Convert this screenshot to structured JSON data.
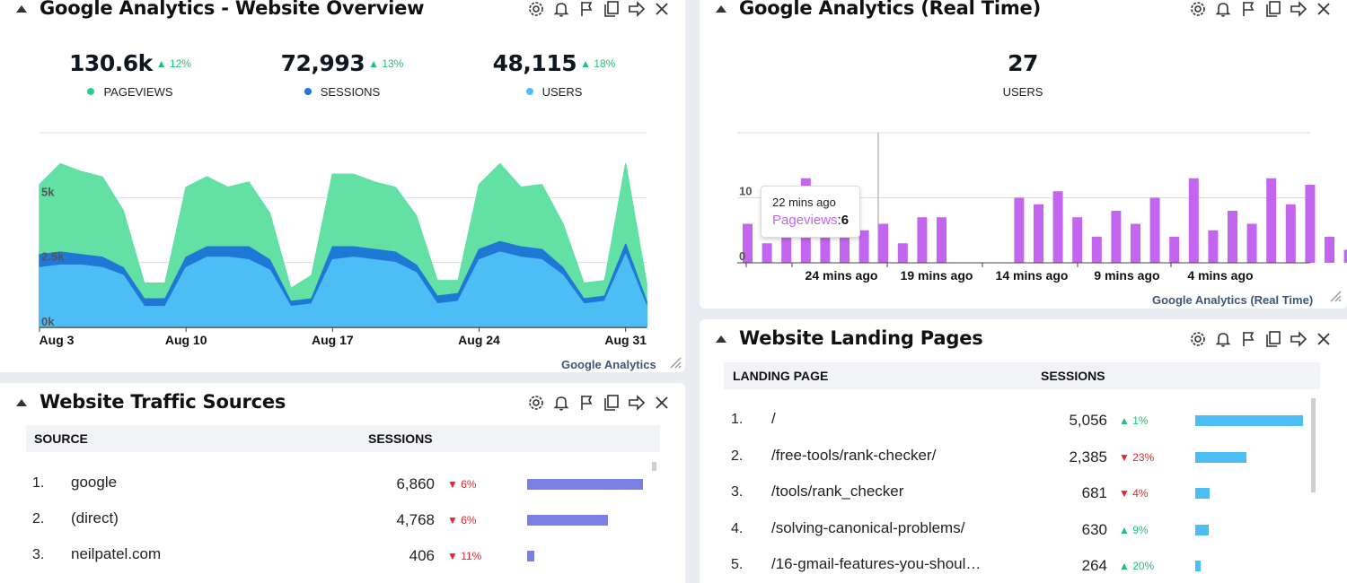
{
  "icons": [
    "gear-icon",
    "bell-icon",
    "flag-icon",
    "copy-icon",
    "share-arrow-icon",
    "close-icon"
  ],
  "overview": {
    "title": "Google Analytics - Website Overview",
    "kpis": [
      {
        "value": "130.6k",
        "change": "▲ 12%",
        "label": "PAGEVIEWS",
        "color": "#2ecc8a"
      },
      {
        "value": "72,993",
        "change": "▲ 13%",
        "label": "SESSIONS",
        "color": "#1f78d6"
      },
      {
        "value": "48,115",
        "change": "▲ 18%",
        "label": "USERS",
        "color": "#4dbdf5"
      }
    ],
    "footer": "Google Analytics"
  },
  "realtime": {
    "title": "Google Analytics (Real Time)",
    "kpi": {
      "value": "27",
      "label": "USERS"
    },
    "tooltip": {
      "time": "22 mins ago",
      "label": "Pageviews",
      "value": "6"
    },
    "footer": "Google Analytics (Real Time)"
  },
  "traffic": {
    "title": "Website Traffic Sources",
    "columns": [
      "SOURCE",
      "SESSIONS"
    ],
    "rows": [
      {
        "rank": "1.",
        "source": "google",
        "sessions": "6,860",
        "change": "▼ 6%",
        "dir": "down",
        "fraction": 1.0
      },
      {
        "rank": "2.",
        "source": "(direct)",
        "sessions": "4,768",
        "change": "▼ 6%",
        "dir": "down",
        "fraction": 0.695
      },
      {
        "rank": "3.",
        "source": "neilpatel.com",
        "sessions": "406",
        "change": "▼ 11%",
        "dir": "down",
        "fraction": 0.059
      }
    ],
    "bar_color": "#7b7fe3"
  },
  "landing": {
    "title": "Website Landing Pages",
    "columns": [
      "LANDING PAGE",
      "SESSIONS"
    ],
    "rows": [
      {
        "rank": "1.",
        "page": "/",
        "sessions": "5,056",
        "change": "▲ 1%",
        "dir": "up",
        "fraction": 1.0
      },
      {
        "rank": "2.",
        "page": "/free-tools/rank-checker/",
        "sessions": "2,385",
        "change": "▼ 23%",
        "dir": "down",
        "fraction": 0.472
      },
      {
        "rank": "3.",
        "page": "/tools/rank_checker",
        "sessions": "681",
        "change": "▼ 4%",
        "dir": "down",
        "fraction": 0.135
      },
      {
        "rank": "4.",
        "page": "/solving-canonical-problems/",
        "sessions": "630",
        "change": "▲ 9%",
        "dir": "up",
        "fraction": 0.125
      },
      {
        "rank": "5.",
        "page": "/16-gmail-features-you-shoul…",
        "sessions": "264",
        "change": "▲ 20%",
        "dir": "up",
        "fraction": 0.052
      }
    ],
    "bar_color": "#4dbdf5"
  },
  "chart_data": [
    {
      "type": "area",
      "x_tick_labels": [
        "Aug 3",
        "Aug 10",
        "Aug 17",
        "Aug 24",
        "Aug 31"
      ],
      "y_tick_labels": [
        "0k",
        "2.5k",
        "5k"
      ],
      "ylim": [
        0,
        7500
      ],
      "grid": true,
      "series": [
        {
          "name": "PAGEVIEWS",
          "color": "#63e0a3",
          "values": [
            5500,
            6300,
            6000,
            5800,
            4500,
            1700,
            1700,
            5400,
            5800,
            5400,
            5600,
            4400,
            1500,
            2000,
            5900,
            5900,
            5600,
            5400,
            4300,
            1800,
            1800,
            5500,
            6300,
            5400,
            5500,
            4000,
            1700,
            1800,
            6300,
            1700
          ]
        },
        {
          "name": "SESSIONS",
          "color": "#1f78d6",
          "values": [
            2800,
            2900,
            2800,
            2700,
            2300,
            1100,
            1100,
            2700,
            3100,
            3100,
            3100,
            2600,
            1000,
            1100,
            3100,
            3100,
            3000,
            2900,
            2400,
            1200,
            1300,
            3000,
            3300,
            3100,
            3000,
            2300,
            1100,
            1200,
            3200,
            1000
          ]
        },
        {
          "name": "USERS",
          "color": "#4dbdf5",
          "values": [
            2300,
            2400,
            2400,
            2300,
            2000,
            800,
            800,
            2300,
            2700,
            2700,
            2600,
            2200,
            800,
            900,
            2600,
            2700,
            2600,
            2500,
            2100,
            900,
            1000,
            2600,
            2900,
            2700,
            2600,
            2000,
            900,
            1000,
            2800,
            800
          ]
        }
      ]
    },
    {
      "type": "bar",
      "x_tick_labels": [
        "24 mins ago",
        "19 mins ago",
        "14 mins ago",
        "9 mins ago",
        "4 mins ago"
      ],
      "y_tick_labels": [
        "0",
        "10"
      ],
      "ylim": [
        0,
        20
      ],
      "grid": true,
      "series": [
        {
          "name": "Pageviews",
          "color": "#c465f0",
          "values": [
            6,
            3,
            7,
            13,
            8,
            4,
            5,
            6,
            3,
            7,
            7,
            0,
            0,
            0,
            10,
            9,
            11,
            7,
            4,
            8,
            6,
            10,
            4,
            13,
            5,
            8,
            6,
            13,
            9,
            12,
            4,
            2
          ]
        }
      ]
    }
  ]
}
